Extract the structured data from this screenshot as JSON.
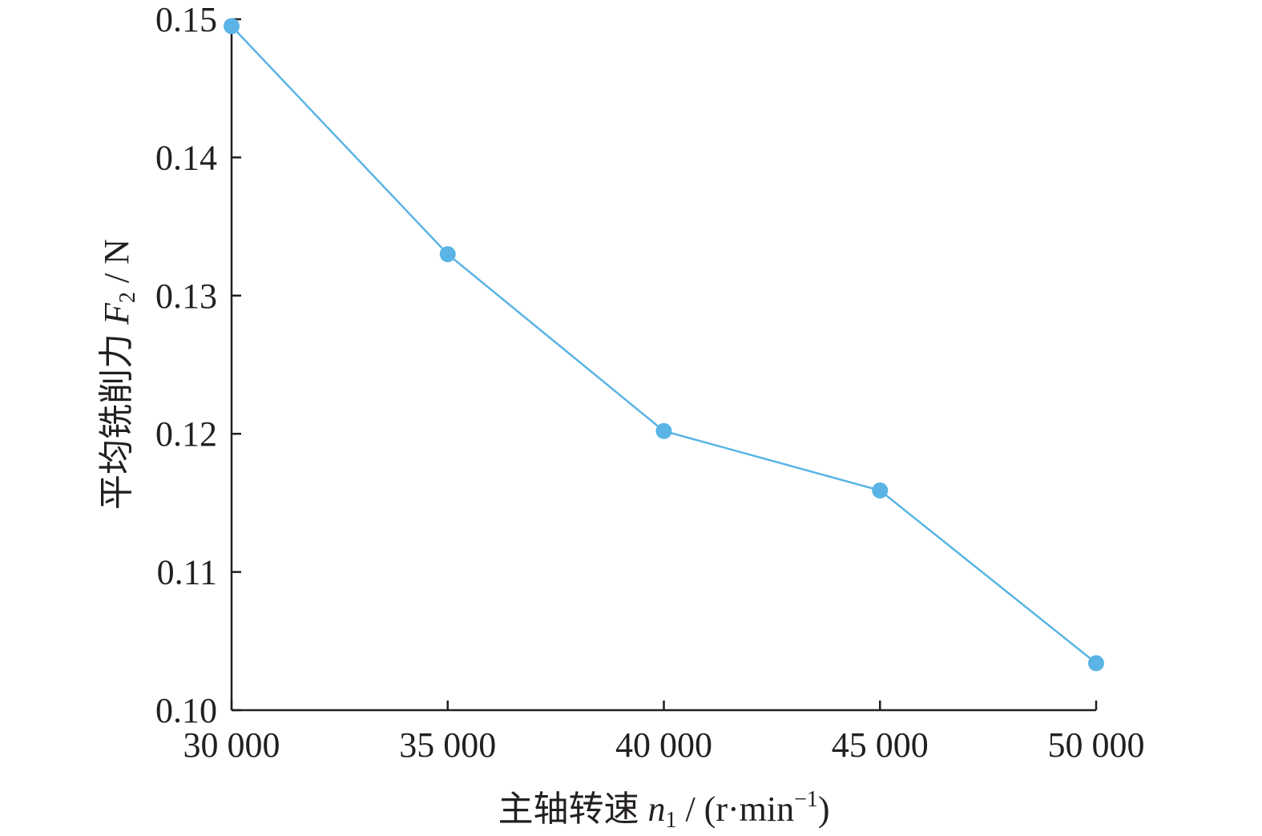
{
  "chart_data": {
    "type": "line",
    "x": [
      30000,
      35000,
      40000,
      45000,
      50000
    ],
    "series": [
      {
        "values": [
          0.1495,
          0.133,
          0.1202,
          0.1159,
          0.1034
        ],
        "color": "#5ab4e5"
      }
    ],
    "xlim": [
      30000,
      50000
    ],
    "ylim": [
      0.1,
      0.15
    ],
    "x_ticks": [
      "30 000",
      "35 000",
      "40 000",
      "45 000",
      "50 000"
    ],
    "y_ticks": [
      "0.10",
      "0.11",
      "0.12",
      "0.13",
      "0.14",
      "0.15"
    ],
    "xlabel": {
      "text": "主轴转速 ",
      "var": "n",
      "sub": "1",
      "unit": " / (r·min",
      "sup": "−1",
      "close": ")"
    },
    "ylabel": {
      "text": "平均铣削力 ",
      "var": "F",
      "sub": "2",
      "unit": " / N"
    },
    "grid": false,
    "legend": "none"
  }
}
